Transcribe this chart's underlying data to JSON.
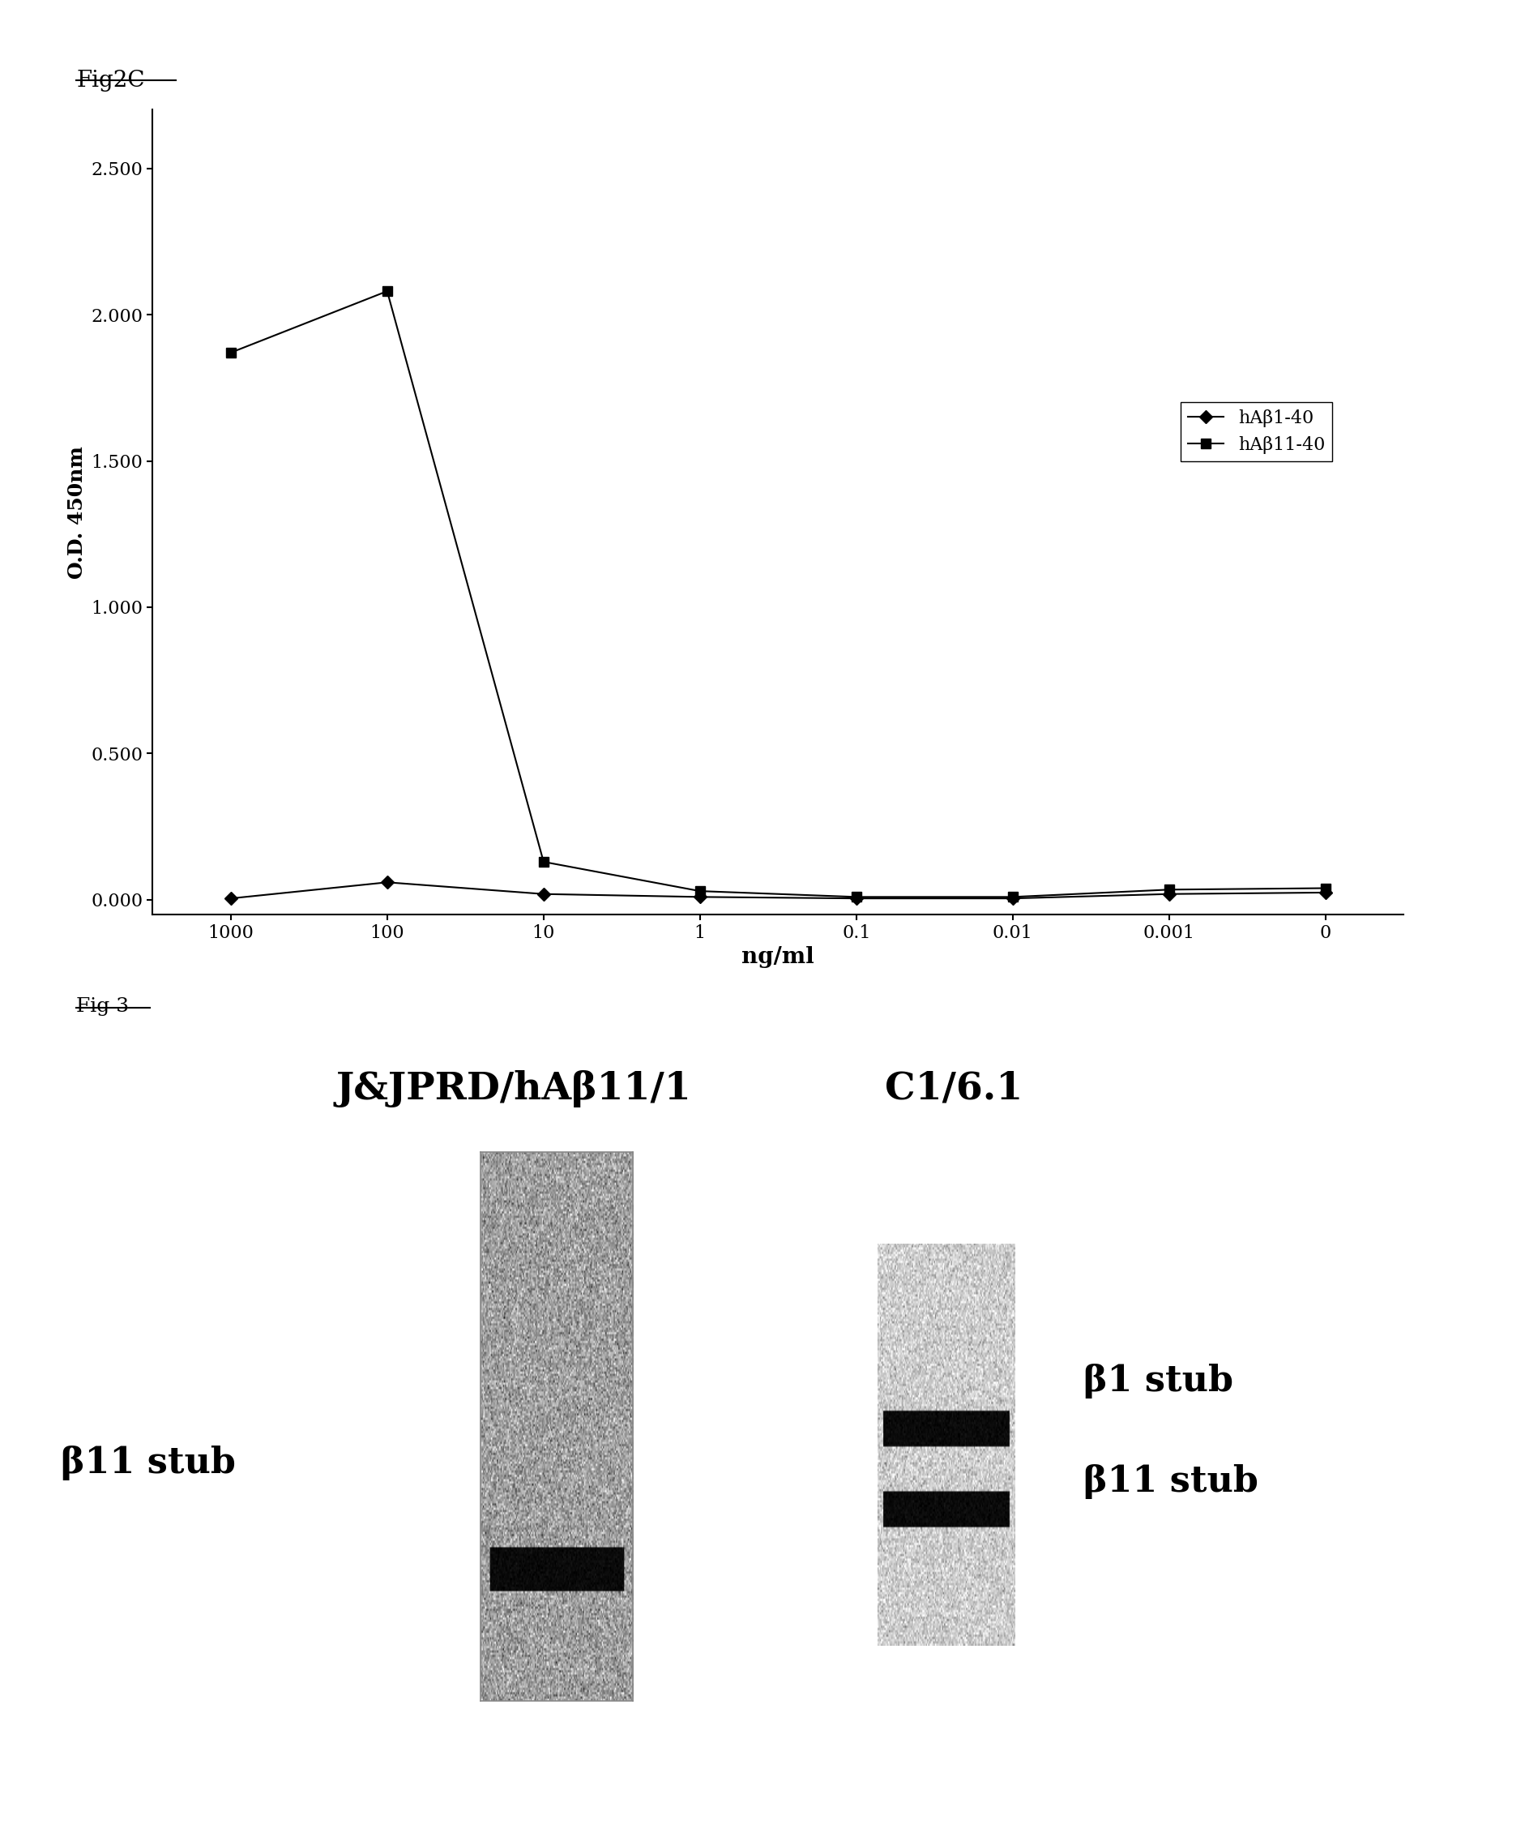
{
  "fig2c_label": "Fig2C",
  "fig3_label": "Fig 3",
  "ylabel": "O.D. 450nm",
  "xlabel": "ng/ml",
  "yticks": [
    0.0,
    0.5,
    1.0,
    1.5,
    2.0,
    2.5
  ],
  "xtick_labels": [
    "1000",
    "100",
    "10",
    "1",
    "0.1",
    "0.01",
    "0.001",
    "0"
  ],
  "ylim": [
    -0.05,
    2.7
  ],
  "series1_label": "hAβ1-40",
  "series2_label": "hAβ11-40",
  "series1_y": [
    0.005,
    0.06,
    0.02,
    0.01,
    0.005,
    0.005,
    0.02,
    0.025
  ],
  "series2_y": [
    1.87,
    2.08,
    0.13,
    0.03,
    0.01,
    0.01,
    0.035,
    0.04
  ],
  "col1_title": "J&JPRD/hAβ11/1",
  "col2_title": "C1/6.1",
  "label_beta11": "β11 stub",
  "label_beta1": "β1 stub",
  "label_beta11_right": "β11 stub",
  "bg_color": "#ffffff",
  "line_color": "#000000"
}
